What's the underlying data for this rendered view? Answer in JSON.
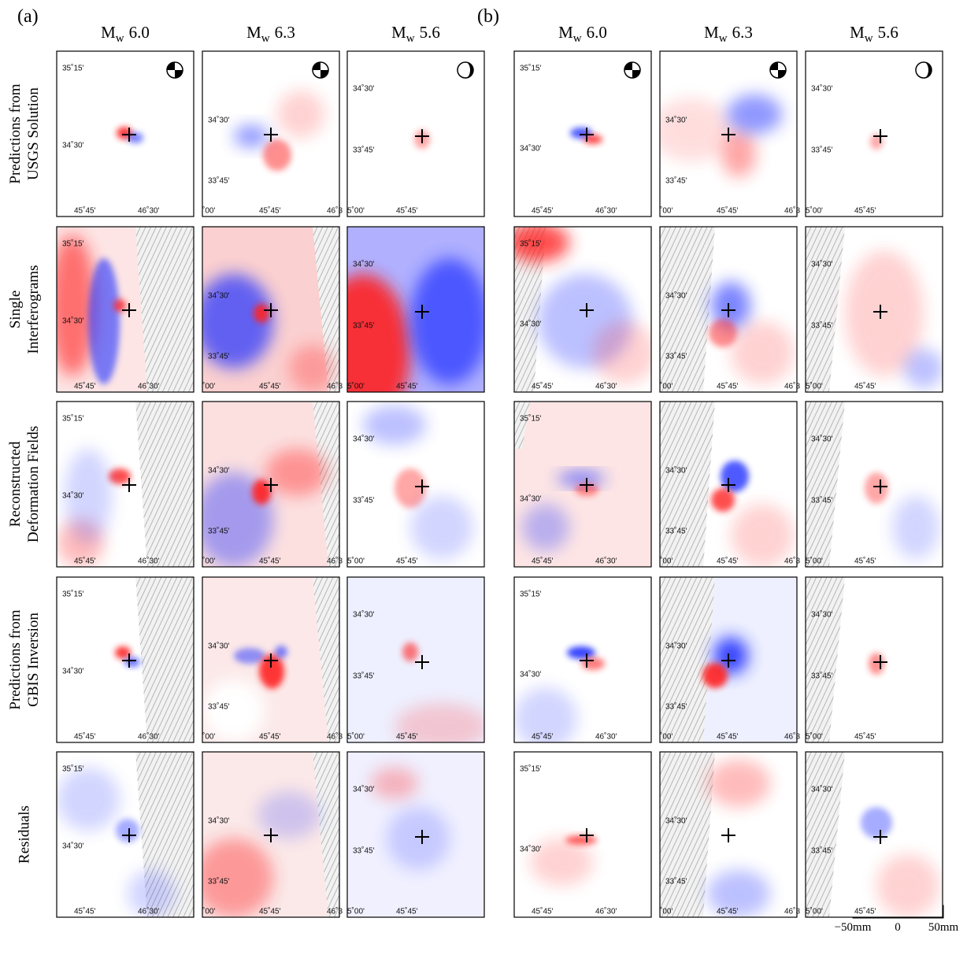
{
  "panel_labels": [
    "(a)",
    "(b)"
  ],
  "column_headers": [
    {
      "symbol": "M",
      "subscript": "w",
      "magnitude": "6.0"
    },
    {
      "symbol": "M",
      "subscript": "w",
      "magnitude": "6.3"
    },
    {
      "symbol": "M",
      "subscript": "w",
      "magnitude": "5.6"
    },
    {
      "symbol": "M",
      "subscript": "w",
      "magnitude": "6.0"
    },
    {
      "symbol": "M",
      "subscript": "w",
      "magnitude": "6.3"
    },
    {
      "symbol": "M",
      "subscript": "w",
      "magnitude": "5.6"
    }
  ],
  "row_labels": [
    [
      "Predictions from",
      "USGS Solution"
    ],
    [
      "Single",
      "Interferograms"
    ],
    [
      "Reconstructed",
      "Deformation Fields"
    ],
    [
      "Predictions from",
      "GBIS Inversion"
    ],
    [
      "Residuals"
    ]
  ],
  "axis_labels": [
    {
      "y": [
        "35˚15'",
        "34˚30'"
      ],
      "x": [
        "45˚45'",
        "46˚30'"
      ]
    },
    {
      "y": [
        "34˚30'",
        "33˚45'"
      ],
      "x": [
        "˚00'",
        "45˚45'",
        "46˚3"
      ]
    },
    {
      "y": [
        "34˚30'",
        "33˚45'"
      ],
      "x": [
        "5˚00'",
        "45˚45'"
      ]
    },
    {
      "y": [
        "35˚15'",
        "34˚30'"
      ],
      "x": [
        "45˚45'",
        "46˚30'"
      ]
    },
    {
      "y": [
        "34˚30'",
        "33˚45'"
      ],
      "x": [
        "˚00'",
        "45˚45'",
        "46˚3"
      ]
    },
    {
      "y": [
        "34˚30'",
        "33˚45'"
      ],
      "x": [
        "5˚00'",
        "45˚45'"
      ]
    }
  ],
  "colorbar": {
    "labels": [
      "−50mm",
      "0",
      "50mm"
    ]
  }
}
